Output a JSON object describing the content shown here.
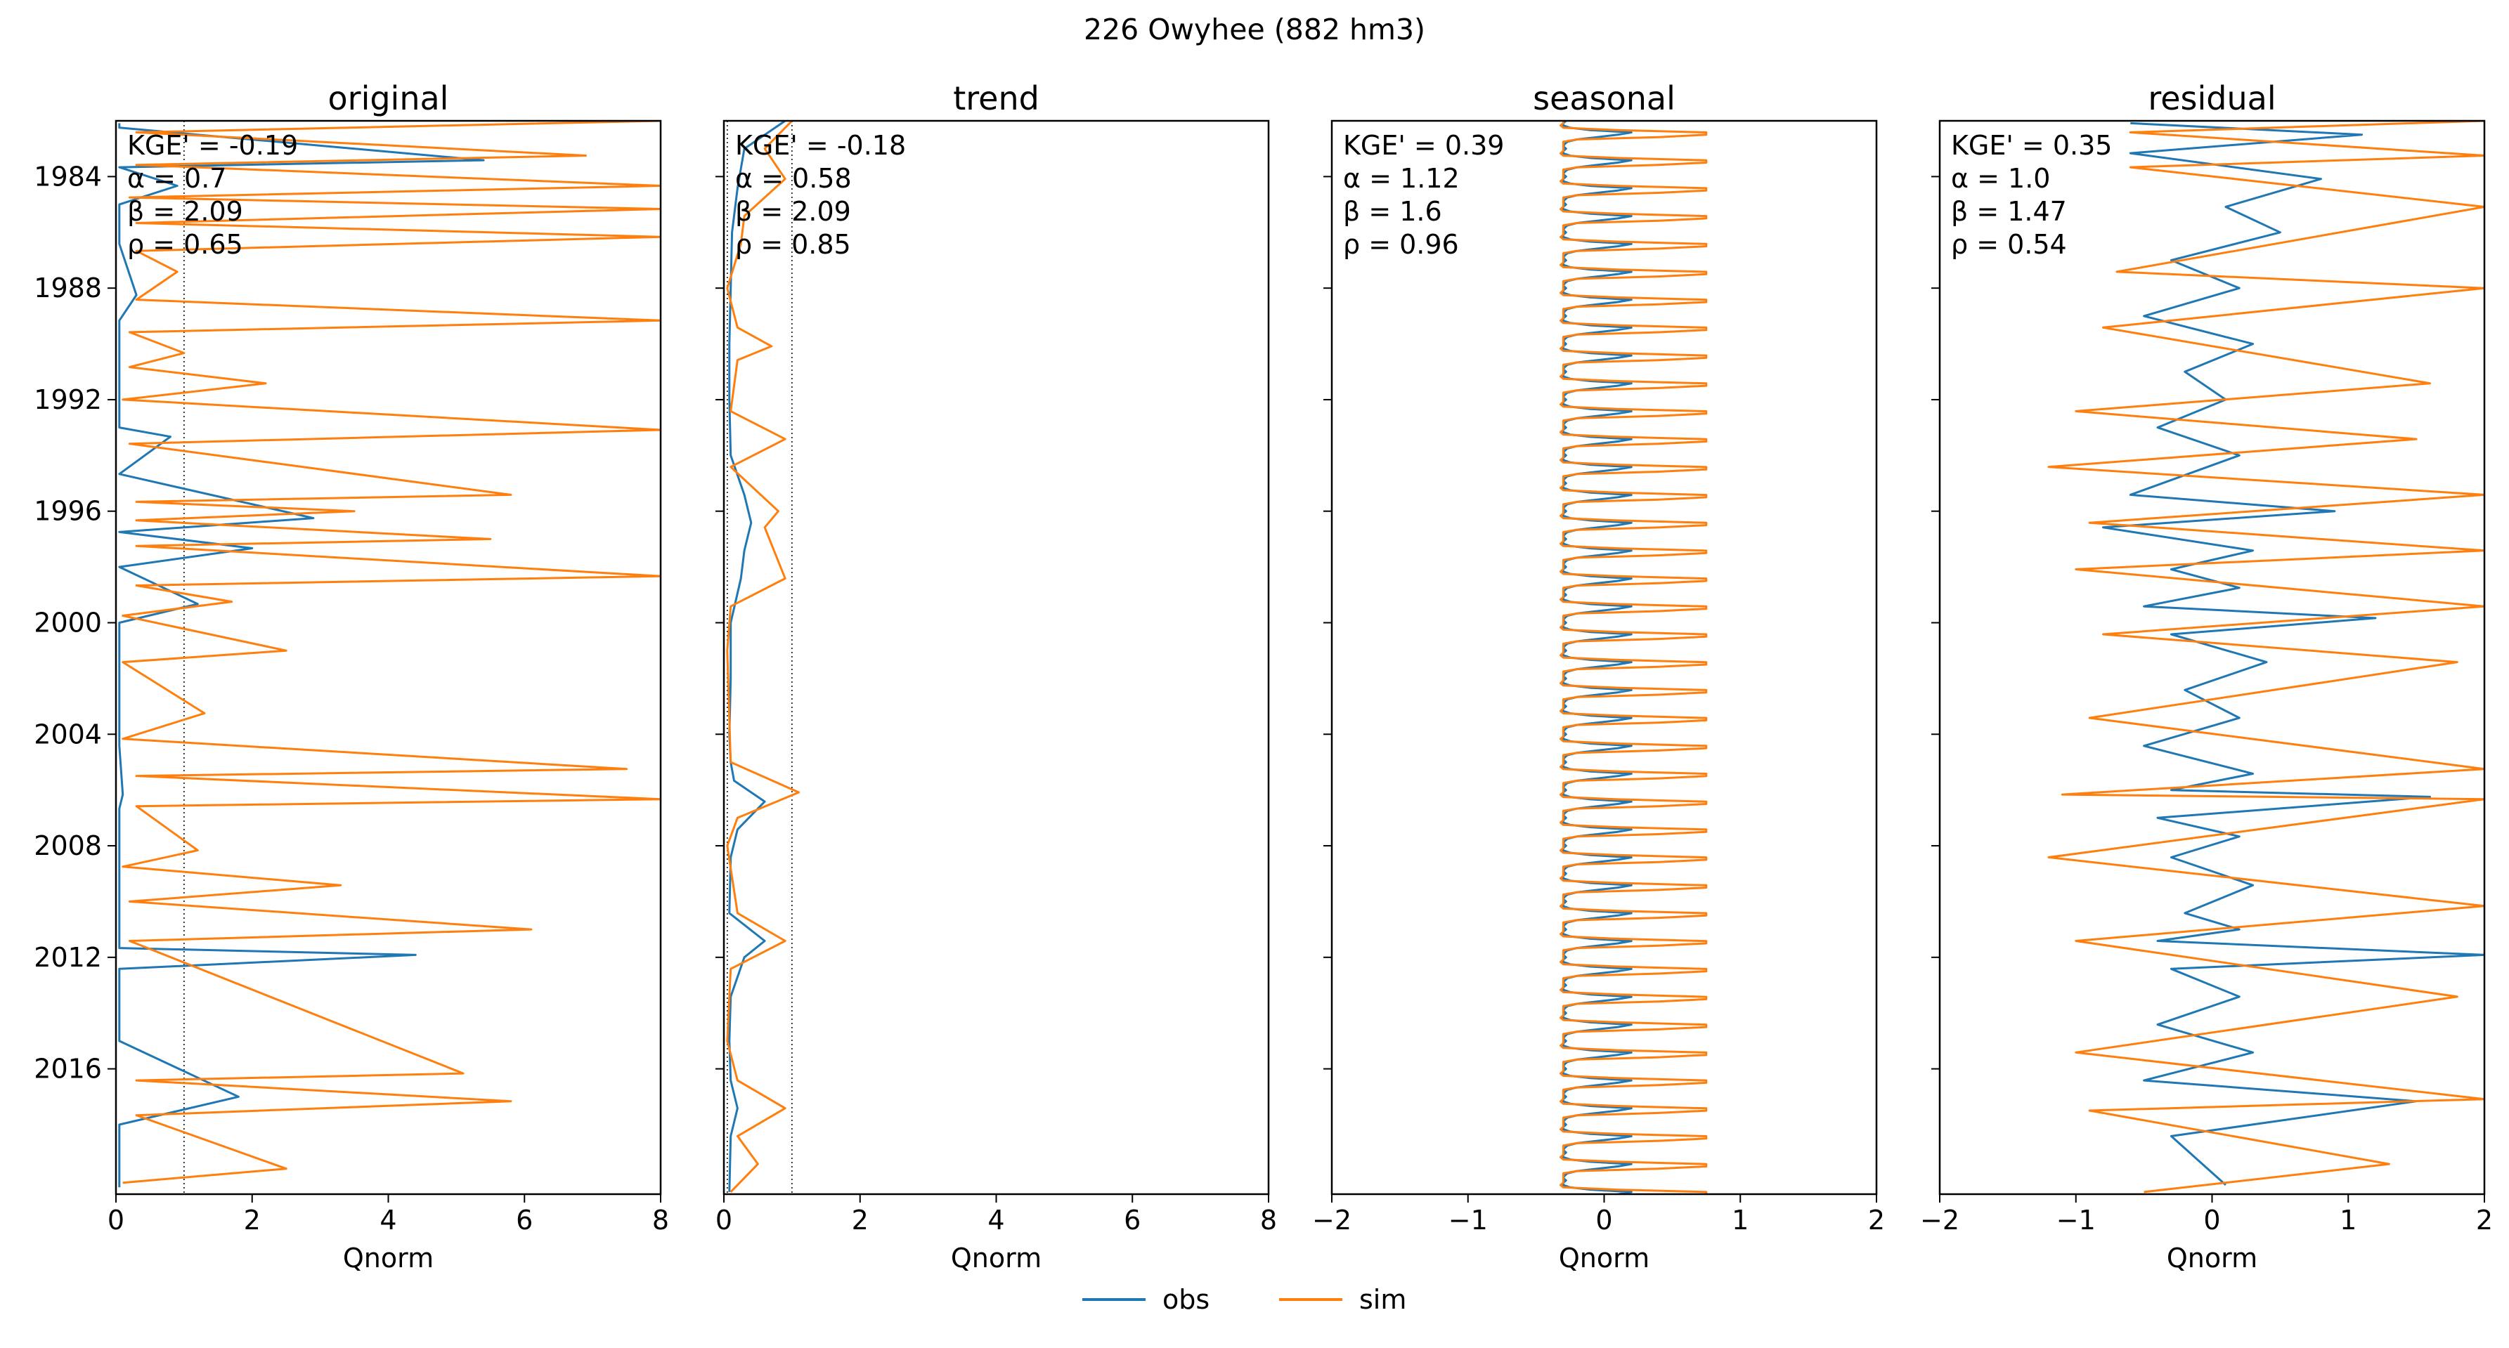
{
  "figure": {
    "suptitle": "226  Owyhee (882 hm3)"
  },
  "colors": {
    "obs": "#1f77b4",
    "sim": "#ff7f0e"
  },
  "legend": [
    {
      "series": "obs",
      "label": "obs"
    },
    {
      "series": "sim",
      "label": "sim"
    }
  ],
  "chart_data": [
    {
      "type": "line",
      "title": "original",
      "xlabel": "Qnorm",
      "ylabel": "",
      "xlim": [
        0,
        8
      ],
      "xticks": [
        0,
        2,
        4,
        6,
        8
      ],
      "ylim": [
        "1982-01-01",
        "2020-06-30"
      ],
      "yticks": [
        "1984",
        "1988",
        "1992",
        "1996",
        "2000",
        "2004",
        "2008",
        "2012",
        "2016"
      ],
      "reference_lines": [
        1
      ],
      "metrics": [
        "KGE' = -0.19",
        "α = 0.7",
        "β = 2.09",
        "ρ = 0.65"
      ],
      "series": [
        {
          "name": "obs",
          "x": [
            0.05,
            0.05,
            5.4,
            0.05,
            0.9,
            0.05,
            0.05,
            0.3,
            0.05,
            0.05,
            0.05,
            0.8,
            0.05,
            2.9,
            0.05,
            2.0,
            0.05,
            1.2,
            0.05,
            0.05,
            0.05,
            0.1,
            0.05,
            0.05,
            0.05,
            0.05,
            4.4,
            0.05,
            0.05,
            1.8,
            0.05,
            0.05
          ],
          "y": [
            "1982-02-01",
            "1982-04-01",
            "1983-06-01",
            "1983-09-01",
            "1984-05-01",
            "1985-01-01",
            "1986-06-01",
            "1988-04-01",
            "1989-03-01",
            "1991-01-01",
            "1993-01-01",
            "1993-05-01",
            "1994-09-01",
            "1996-04-01",
            "1996-10-01",
            "1997-05-01",
            "1998-01-01",
            "1999-05-01",
            "2000-01-01",
            "2002-01-01",
            "2004-06-01",
            "2006-03-01",
            "2006-09-01",
            "2009-01-01",
            "2011-01-01",
            "2011-09-01",
            "2011-12-01",
            "2012-06-01",
            "2015-01-01",
            "2017-01-01",
            "2018-01-01",
            "2020-04-01"
          ]
        },
        {
          "name": "sim",
          "x": [
            8.0,
            0.3,
            6.9,
            0.3,
            8.0,
            0.2,
            8.0,
            0.3,
            8.0,
            0.3,
            0.9,
            0.3,
            8.0,
            0.2,
            1.0,
            0.2,
            2.2,
            0.1,
            8.0,
            0.2,
            5.8,
            0.3,
            3.5,
            0.3,
            5.5,
            0.3,
            8.0,
            0.3,
            1.7,
            0.1,
            2.5,
            0.1,
            1.3,
            0.1,
            7.5,
            0.3,
            8.0,
            0.3,
            1.2,
            0.1,
            3.3,
            0.2,
            6.1,
            0.2,
            5.1,
            0.3,
            5.8,
            0.3,
            2.5,
            0.1
          ],
          "y": [
            "1982-01-01",
            "1982-06-01",
            "1983-04-01",
            "1983-08-01",
            "1984-05-01",
            "1984-10-01",
            "1985-03-01",
            "1985-09-01",
            "1986-03-01",
            "1986-09-01",
            "1987-06-01",
            "1988-06-01",
            "1989-03-01",
            "1989-08-01",
            "1990-05-01",
            "1990-11-01",
            "1991-06-01",
            "1992-01-01",
            "1993-02-01",
            "1993-08-01",
            "1995-06-01",
            "1995-09-01",
            "1996-01-01",
            "1996-05-01",
            "1997-01-01",
            "1997-04-01",
            "1998-05-01",
            "1998-09-01",
            "1999-04-01",
            "1999-10-01",
            "2001-01-01",
            "2001-06-01",
            "2003-04-01",
            "2004-03-01",
            "2005-04-01",
            "2005-07-01",
            "2006-05-01",
            "2006-08-01",
            "2008-03-01",
            "2008-10-01",
            "2009-06-01",
            "2010-01-01",
            "2011-01-01",
            "2011-06-01",
            "2016-03-01",
            "2016-06-01",
            "2017-03-01",
            "2017-09-01",
            "2019-08-01",
            "2020-02-01"
          ]
        }
      ]
    },
    {
      "type": "line",
      "title": "trend",
      "xlabel": "Qnorm",
      "ylabel": "",
      "xlim": [
        0,
        8
      ],
      "xticks": [
        0,
        2,
        4,
        6,
        8
      ],
      "ylim": [
        "1982-01-01",
        "2020-06-30"
      ],
      "yticks": [
        "1984",
        "1988",
        "1992",
        "1996",
        "2000",
        "2004",
        "2008",
        "2012",
        "2016"
      ],
      "reference_lines": [
        0.05,
        1
      ],
      "metrics": [
        "KGE' = -0.18",
        "α = 0.58",
        "β = 2.09",
        "ρ = 0.85"
      ],
      "series": [
        {
          "name": "obs",
          "x": [
            0.9,
            0.3,
            0.2,
            0.12,
            0.1,
            0.08,
            0.08,
            0.1,
            0.3,
            0.4,
            0.3,
            0.25,
            0.1,
            0.1,
            0.08,
            0.1,
            0.15,
            0.6,
            0.2,
            0.1,
            0.08,
            0.6,
            0.3,
            0.1,
            0.08,
            0.1,
            0.2,
            0.1,
            0.08
          ],
          "y": [
            "1982-01-01",
            "1983-01-01",
            "1984-06-01",
            "1986-01-01",
            "1988-01-01",
            "1990-01-01",
            "1992-01-01",
            "1994-01-01",
            "1995-06-01",
            "1996-06-01",
            "1997-06-01",
            "1998-06-01",
            "2000-01-01",
            "2002-01-01",
            "2004-01-01",
            "2005-01-01",
            "2005-09-01",
            "2006-06-01",
            "2007-06-01",
            "2008-06-01",
            "2010-06-01",
            "2011-06-01",
            "2012-01-01",
            "2013-06-01",
            "2015-01-01",
            "2016-06-01",
            "2017-06-01",
            "2018-06-01",
            "2020-06-01"
          ]
        },
        {
          "name": "sim",
          "x": [
            1.0,
            0.6,
            0.9,
            0.3,
            0.25,
            0.05,
            0.2,
            0.7,
            0.2,
            0.1,
            0.9,
            0.1,
            0.8,
            0.6,
            0.9,
            0.1,
            0.05,
            0.1,
            1.1,
            0.2,
            0.05,
            0.2,
            0.9,
            0.1,
            0.05,
            0.2,
            0.9,
            0.2,
            0.5,
            0.1
          ],
          "y": [
            "1982-01-01",
            "1983-01-01",
            "1984-02-01",
            "1985-06-01",
            "1986-06-01",
            "1988-01-01",
            "1989-06-01",
            "1990-02-01",
            "1990-08-01",
            "1992-06-01",
            "1993-06-01",
            "1994-06-01",
            "1996-01-01",
            "1996-08-01",
            "1998-06-01",
            "1999-06-01",
            "2001-01-01",
            "2005-01-01",
            "2006-02-01",
            "2007-01-01",
            "2008-01-01",
            "2010-06-01",
            "2011-06-01",
            "2012-06-01",
            "2015-01-01",
            "2016-06-01",
            "2017-06-01",
            "2018-06-01",
            "2019-06-01",
            "2020-06-01"
          ]
        }
      ]
    },
    {
      "type": "line",
      "title": "seasonal",
      "xlabel": "Qnorm",
      "ylabel": "",
      "xlim": [
        -2,
        2
      ],
      "xticks": [
        -2,
        -1,
        0,
        1,
        2
      ],
      "ylim": [
        "1982-01-01",
        "2020-06-30"
      ],
      "yticks": [
        "1984",
        "1988",
        "1992",
        "1996",
        "2000",
        "2004",
        "2008",
        "2012",
        "2016"
      ],
      "reference_lines": [],
      "metrics": [
        "KGE' = 0.39",
        "α = 1.12",
        "β = 1.6",
        "ρ = 0.96"
      ],
      "series": [
        {
          "name": "obs",
          "annual_cycle_x": [
            -0.28,
            -0.3,
            -0.3,
            -0.25,
            -0.1,
            0.2,
            0.1,
            -0.05,
            -0.2,
            -0.27,
            -0.29,
            -0.3
          ]
        },
        {
          "name": "sim",
          "annual_cycle_x": [
            -0.3,
            -0.3,
            -0.32,
            -0.3,
            0.1,
            0.75,
            0.75,
            0.4,
            -0.2,
            -0.3,
            -0.3,
            -0.3
          ]
        }
      ]
    },
    {
      "type": "line",
      "title": "residual",
      "xlabel": "Qnorm",
      "ylabel": "",
      "xlim": [
        -2,
        2
      ],
      "xticks": [
        -2,
        -1,
        0,
        1,
        2
      ],
      "ylim": [
        "1982-01-01",
        "2020-06-30"
      ],
      "yticks": [
        "1984",
        "1988",
        "1992",
        "1996",
        "2000",
        "2004",
        "2008",
        "2012",
        "2016"
      ],
      "reference_lines": [],
      "metrics": [
        "KGE' = 0.35",
        "α = 1.0",
        "β = 1.47",
        "ρ = 0.54"
      ],
      "series": [
        {
          "name": "obs",
          "x": [
            -0.6,
            1.1,
            -0.6,
            0.8,
            0.1,
            0.5,
            -0.3,
            0.2,
            -0.5,
            0.3,
            -0.2,
            0.1,
            -0.4,
            0.2,
            -0.6,
            0.9,
            -0.8,
            0.3,
            -0.3,
            0.2,
            -0.5,
            1.2,
            -0.3,
            0.4,
            -0.2,
            0.2,
            -0.5,
            0.3,
            -0.3,
            1.6,
            -0.4,
            0.2,
            -0.3,
            0.3,
            -0.2,
            0.2,
            -0.4,
            2.0,
            -0.3,
            0.2,
            -0.4,
            0.3,
            -0.5,
            1.5,
            -0.3,
            0.1
          ],
          "y": [
            "1982-02-01",
            "1982-07-01",
            "1983-03-01",
            "1984-02-01",
            "1985-02-01",
            "1986-01-01",
            "1987-01-01",
            "1988-01-01",
            "1989-01-01",
            "1990-01-01",
            "1991-01-01",
            "1992-01-01",
            "1993-01-01",
            "1994-01-01",
            "1995-06-01",
            "1996-01-01",
            "1996-08-01",
            "1997-06-01",
            "1998-02-01",
            "1998-10-01",
            "1999-06-01",
            "1999-11-01",
            "2000-06-01",
            "2001-06-01",
            "2002-06-01",
            "2003-06-01",
            "2004-06-01",
            "2005-06-01",
            "2006-01-01",
            "2006-04-01",
            "2007-01-01",
            "2007-09-01",
            "2008-06-01",
            "2009-06-01",
            "2010-06-01",
            "2011-01-01",
            "2011-06-01",
            "2011-12-01",
            "2012-06-01",
            "2013-06-01",
            "2014-06-01",
            "2015-06-01",
            "2016-06-01",
            "2017-03-01",
            "2018-06-01",
            "2020-03-01"
          ]
        },
        {
          "name": "sim",
          "x": [
            2.0,
            -0.6,
            2.0,
            -0.6,
            2.0,
            -0.7,
            2.0,
            -0.8,
            1.6,
            -1.0,
            1.5,
            -1.2,
            2.0,
            -0.9,
            2.0,
            -1.0,
            2.0,
            -0.8,
            1.8,
            -0.9,
            2.0,
            -1.1,
            2.0,
            -1.2,
            2.0,
            -1.0,
            1.8,
            -1.0,
            2.0,
            -0.9,
            1.3,
            -0.5
          ],
          "y": [
            "1982-01-01",
            "1982-06-01",
            "1983-04-01",
            "1983-09-01",
            "1985-02-01",
            "1987-06-01",
            "1988-01-01",
            "1989-06-01",
            "1991-06-01",
            "1992-06-01",
            "1993-06-01",
            "1994-06-01",
            "1995-06-01",
            "1996-06-01",
            "1997-06-01",
            "1998-02-01",
            "1999-06-01",
            "2000-06-01",
            "2001-06-01",
            "2003-06-01",
            "2005-04-01",
            "2006-03-01",
            "2006-05-01",
            "2008-06-01",
            "2010-03-01",
            "2011-06-01",
            "2013-06-01",
            "2015-06-01",
            "2017-02-01",
            "2017-07-01",
            "2019-06-01",
            "2020-06-01"
          ]
        }
      ]
    }
  ]
}
